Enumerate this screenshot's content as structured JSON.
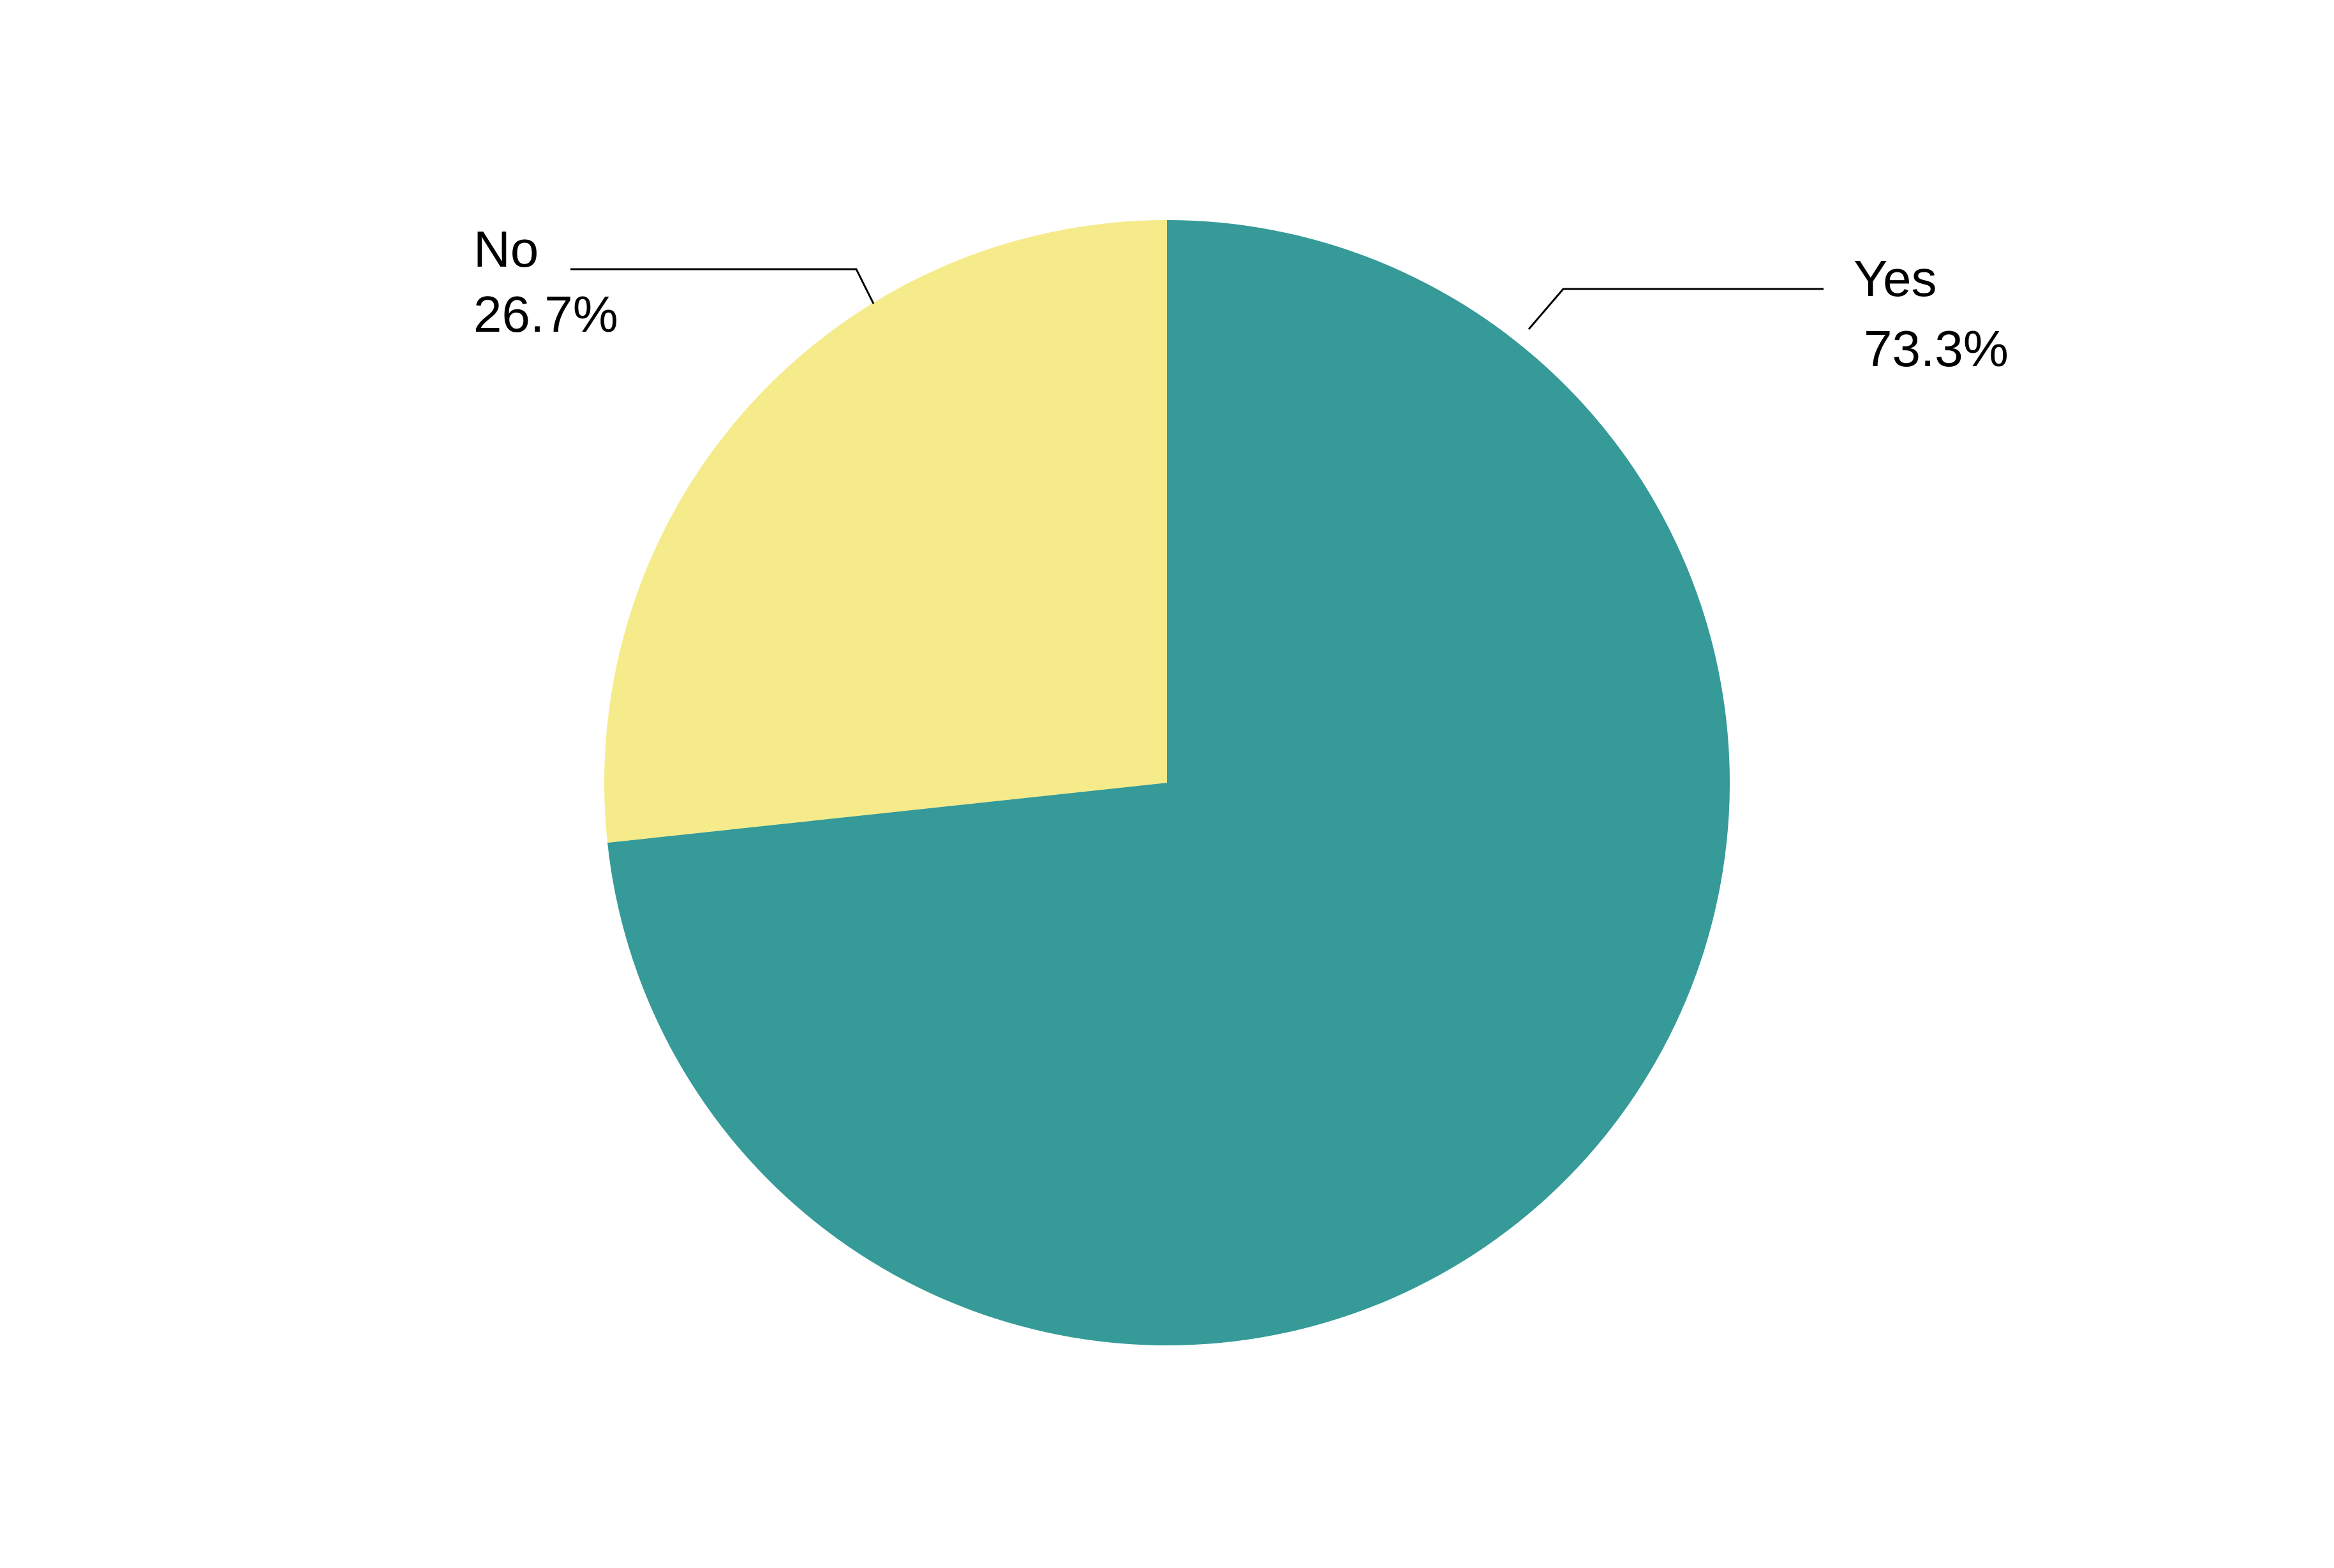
{
  "chart_data": {
    "type": "pie",
    "categories": [
      "Yes",
      "No"
    ],
    "values": [
      73.3,
      26.7
    ],
    "value_labels": [
      "73.3%",
      "26.7%"
    ],
    "colors": [
      "#359a98",
      "#f6eb8b"
    ]
  }
}
